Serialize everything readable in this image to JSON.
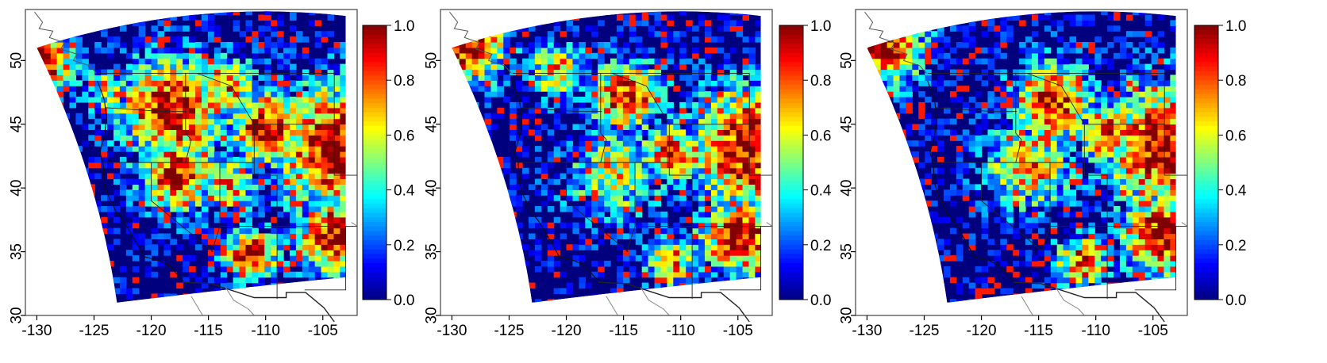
{
  "figure": {
    "panel_count": 3,
    "axes": {
      "x_ticks": [
        -130,
        -125,
        -120,
        -115,
        -110,
        -105
      ],
      "y_ticks": [
        30,
        35,
        40,
        45,
        50
      ],
      "xlim": [
        -131,
        -102
      ],
      "ylim": [
        30,
        54
      ]
    },
    "colorbar": {
      "ticks": [
        "0.0",
        "0.2",
        "0.4",
        "0.6",
        "0.8",
        "1.0"
      ],
      "range": [
        0,
        1
      ],
      "colormap": "jet",
      "colors": [
        "#00007f",
        "#0000ff",
        "#007fff",
        "#00ffff",
        "#7fff7f",
        "#ffff00",
        "#ff7f00",
        "#ff0000",
        "#7f0000"
      ]
    },
    "map": {
      "region": "Western United States",
      "grid_type": "model domain grid cells",
      "domain_corners_lonlat": [
        [
          -130,
          51
        ],
        [
          -103,
          53.5
        ],
        [
          -103,
          33
        ],
        [
          -123,
          31
        ]
      ],
      "background_color": "#00007f"
    }
  },
  "chart_data": [
    {
      "type": "heatmap",
      "panel": 1,
      "x_ticks": [
        -130,
        -125,
        -120,
        -115,
        -110,
        -105
      ],
      "y_ticks": [
        30,
        35,
        40,
        45,
        50
      ],
      "xlim": [
        -131,
        -102
      ],
      "ylim": [
        30,
        54
      ],
      "zlim": [
        0,
        1
      ],
      "hotspots": [
        {
          "lon": -130,
          "lat": 49.5,
          "value": 1.0,
          "radius": 2.2
        },
        {
          "lon": -118.5,
          "lat": 46,
          "value": 1.0,
          "radius": 3.2
        },
        {
          "lon": -114,
          "lat": 47.5,
          "value": 0.75,
          "radius": 2.2
        },
        {
          "lon": -110,
          "lat": 44.5,
          "value": 0.95,
          "radius": 2.5
        },
        {
          "lon": -118,
          "lat": 41,
          "value": 0.9,
          "radius": 2.5
        },
        {
          "lon": -113.5,
          "lat": 40,
          "value": 0.7,
          "radius": 1.8
        },
        {
          "lon": -104,
          "lat": 43,
          "value": 1.0,
          "radius": 4.0
        },
        {
          "lon": -104,
          "lat": 36,
          "value": 1.0,
          "radius": 2.5
        },
        {
          "lon": -111.5,
          "lat": 34.5,
          "value": 1.0,
          "radius": 1.6
        },
        {
          "lon": -124,
          "lat": 47.5,
          "value": 0.6,
          "radius": 1.5
        }
      ]
    },
    {
      "type": "heatmap",
      "panel": 2,
      "x_ticks": [
        -130,
        -125,
        -120,
        -115,
        -110,
        -105
      ],
      "y_ticks": [
        30,
        35,
        40,
        45,
        50
      ],
      "xlim": [
        -131,
        -102
      ],
      "ylim": [
        30,
        54
      ],
      "zlim": [
        0,
        1
      ],
      "hotspots": [
        {
          "lon": -129,
          "lat": 51,
          "value": 1.0,
          "radius": 2.5
        },
        {
          "lon": -115,
          "lat": 47,
          "value": 0.95,
          "radius": 2.2
        },
        {
          "lon": -116,
          "lat": 41,
          "value": 0.6,
          "radius": 3.0
        },
        {
          "lon": -111,
          "lat": 42.5,
          "value": 0.8,
          "radius": 2.0
        },
        {
          "lon": -104,
          "lat": 43,
          "value": 1.0,
          "radius": 4.0
        },
        {
          "lon": -105,
          "lat": 36,
          "value": 1.0,
          "radius": 2.5
        },
        {
          "lon": -111,
          "lat": 34,
          "value": 0.75,
          "radius": 1.6
        },
        {
          "lon": -121,
          "lat": 49,
          "value": 0.7,
          "radius": 1.8
        }
      ]
    },
    {
      "type": "heatmap",
      "panel": 3,
      "x_ticks": [
        -130,
        -125,
        -120,
        -115,
        -110,
        -105
      ],
      "y_ticks": [
        30,
        35,
        40,
        45,
        50
      ],
      "xlim": [
        -131,
        -102
      ],
      "ylim": [
        30,
        54
      ],
      "zlim": [
        0,
        1
      ],
      "hotspots": [
        {
          "lon": -129,
          "lat": 51,
          "value": 1.0,
          "radius": 2.5
        },
        {
          "lon": -114,
          "lat": 46.5,
          "value": 0.95,
          "radius": 2.5
        },
        {
          "lon": -116,
          "lat": 41.5,
          "value": 0.7,
          "radius": 2.8
        },
        {
          "lon": -109,
          "lat": 44,
          "value": 0.85,
          "radius": 2.0
        },
        {
          "lon": -104,
          "lat": 43,
          "value": 1.0,
          "radius": 4.0
        },
        {
          "lon": -104.5,
          "lat": 36,
          "value": 1.0,
          "radius": 2.5
        },
        {
          "lon": -111.5,
          "lat": 34,
          "value": 0.85,
          "radius": 1.6
        }
      ]
    }
  ]
}
